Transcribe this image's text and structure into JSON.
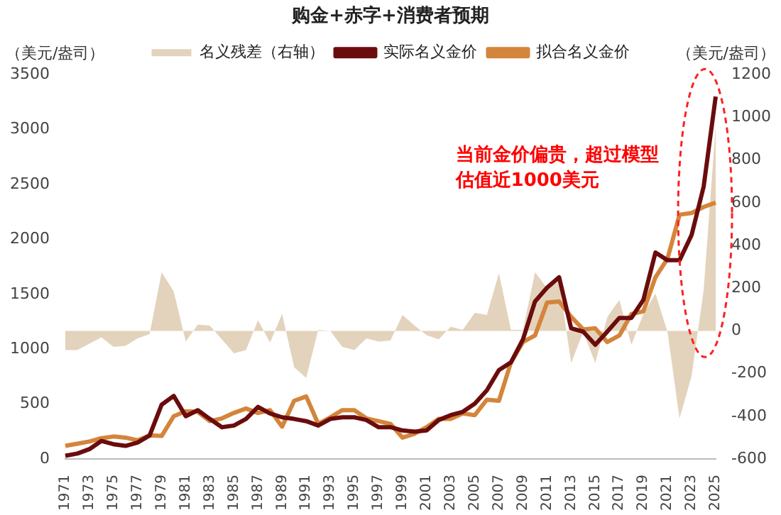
{
  "chart_data": {
    "type": "line",
    "title": "购金+赤字+消费者预期",
    "categories": [
      "1971",
      null,
      "1973",
      null,
      "1975",
      null,
      "1977",
      null,
      "1979",
      null,
      "1981",
      null,
      "1983",
      null,
      "1985",
      null,
      "1987",
      null,
      "1989",
      null,
      "1991",
      null,
      "1993",
      null,
      "1995",
      null,
      "1997",
      null,
      "1999",
      null,
      "2001",
      null,
      "2003",
      null,
      "2005",
      null,
      "2007",
      null,
      "2009",
      null,
      "2011",
      null,
      "2013",
      null,
      "2015",
      null,
      "2017",
      null,
      "2019",
      null,
      "2021",
      null,
      "2023",
      null,
      "2025"
    ],
    "ylabel": "（美元/盎司）",
    "y2label": "（美元/盎司）",
    "series": [
      {
        "name": "名义残差（右轴）",
        "type": "area",
        "axis": "y2",
        "color": "#e3d3bc",
        "values": [
          -90,
          -90,
          -60,
          -30,
          -75,
          -70,
          -35,
          -15,
          275,
          185,
          -50,
          30,
          25,
          -40,
          -105,
          -90,
          50,
          -55,
          80,
          -170,
          -220,
          5,
          0,
          -75,
          -90,
          -35,
          -50,
          -45,
          75,
          25,
          -20,
          -40,
          20,
          5,
          85,
          75,
          270,
          5,
          5,
          275,
          200,
          230,
          -150,
          -5,
          -150,
          65,
          145,
          -65,
          80,
          175,
          -5,
          -410,
          -210,
          190,
          960
        ]
      },
      {
        "name": "实际名义金价",
        "type": "line",
        "color": "#6b0c0c",
        "values": [
          30,
          50,
          90,
          165,
          135,
          120,
          150,
          215,
          495,
          575,
          390,
          445,
          365,
          290,
          305,
          365,
          475,
          415,
          380,
          365,
          345,
          305,
          365,
          380,
          380,
          355,
          290,
          290,
          260,
          250,
          260,
          355,
          400,
          430,
          505,
          625,
          810,
          880,
          1090,
          1435,
          1560,
          1655,
          1190,
          1160,
          1040,
          1160,
          1285,
          1285,
          1450,
          1880,
          1810,
          1810,
          2040,
          2480,
          3300
        ]
      },
      {
        "name": "拟合名义金价",
        "type": "line",
        "color": "#d4853b",
        "values": [
          120,
          140,
          160,
          190,
          205,
          195,
          170,
          215,
          210,
          390,
          435,
          430,
          345,
          370,
          420,
          460,
          420,
          445,
          295,
          530,
          570,
          320,
          380,
          445,
          445,
          370,
          345,
          320,
          195,
          230,
          290,
          365,
          365,
          415,
          400,
          540,
          530,
          880,
          1065,
          1125,
          1425,
          1435,
          1295,
          1180,
          1190,
          1065,
          1125,
          1320,
          1345,
          1655,
          1825,
          2225,
          2240,
          2295,
          2335
        ]
      }
    ],
    "ylim": [
      0,
      3500
    ],
    "yticks": [
      0,
      500,
      1000,
      1500,
      2000,
      2500,
      3000,
      3500
    ],
    "y2lim": [
      -600,
      1200
    ],
    "y2ticks": [
      -600,
      -400,
      -200,
      0,
      200,
      400,
      600,
      800,
      1000,
      1200
    ],
    "legend": "top",
    "grid": false,
    "marker": "none",
    "line_style": "solid",
    "annotations": [
      "当前金价偏贵，超过模型估值近1000美元"
    ]
  }
}
